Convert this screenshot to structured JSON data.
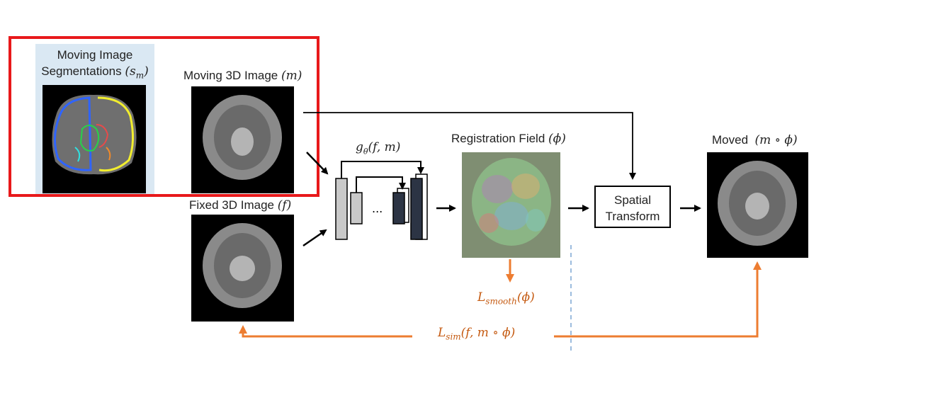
{
  "labels": {
    "seg_title_line1": "Moving Image",
    "seg_title_line2": "Segmentations",
    "seg_symbol": "(s",
    "seg_symbol_sub": "m",
    "seg_symbol_close": ")",
    "moving_text": "Moving 3D Image",
    "moving_symbol": "(m)",
    "fixed_text": "Fixed 3D Image",
    "fixed_symbol": "(f)",
    "network": "g",
    "network_sub": "θ",
    "network_args": "(f, m)",
    "ellipsis": "...",
    "field_text": "Registration Field",
    "field_symbol": "(ϕ)",
    "spatial_line1": "Spatial",
    "spatial_line2": "Transform",
    "moved_text": "Moved",
    "moved_symbol": "(m ∘ ϕ)",
    "l_smooth": "L",
    "l_smooth_sub": "smooth",
    "l_smooth_args": "(ϕ)",
    "l_sim": "L",
    "l_sim_sub": "sim",
    "l_sim_args": "(f, m ∘ ϕ)"
  },
  "colors": {
    "highlight_box": "#e8191b",
    "loss_orange": "#ed7d31",
    "loss_text": "#c55a11",
    "seg_panel": "#dae8f3",
    "encoder_light": "#c9c9c9",
    "decoder_dark": "#2c3444",
    "dashed_line": "#5b8fc7"
  }
}
